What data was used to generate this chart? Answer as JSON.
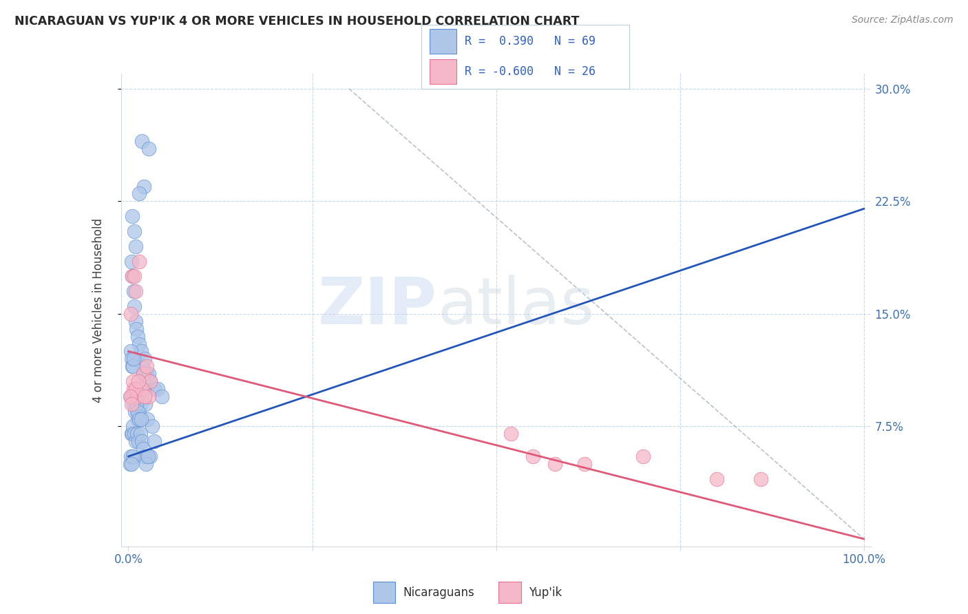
{
  "title": "NICARAGUAN VS YUP'IK 4 OR MORE VEHICLES IN HOUSEHOLD CORRELATION CHART",
  "source": "Source: ZipAtlas.com",
  "ylabel": "4 or more Vehicles in Household",
  "xlim": [
    0,
    100
  ],
  "ylim": [
    0,
    30
  ],
  "xticklabels": [
    "0.0%",
    "",
    "",
    "",
    "100.0%"
  ],
  "yticklabels_right": [
    "",
    "7.5%",
    "15.0%",
    "22.5%",
    "30.0%"
  ],
  "blue_color": "#aec6e8",
  "blue_edge_color": "#5b8fd4",
  "blue_line_color": "#2255bb",
  "pink_color": "#f5b8c8",
  "pink_edge_color": "#e87095",
  "pink_line_color": "#e05878",
  "grid_color": "#c8d8e8",
  "ref_line_color": "#b0bcc8",
  "blue_scatter_x": [
    1.8,
    2.1,
    1.5,
    2.8,
    0.5,
    0.8,
    1.0,
    0.4,
    0.5,
    0.7,
    0.8,
    1.0,
    1.1,
    1.3,
    1.5,
    1.7,
    1.9,
    2.0,
    2.2,
    2.5,
    2.8,
    3.0,
    3.5,
    4.0,
    4.5,
    0.3,
    0.4,
    0.5,
    0.6,
    0.7,
    0.8,
    1.0,
    1.2,
    1.3,
    1.5,
    1.6,
    1.8,
    2.0,
    2.3,
    2.6,
    3.2,
    0.4,
    0.5,
    0.6,
    0.8,
    1.0,
    1.2,
    1.4,
    1.6,
    1.8,
    2.0,
    2.5,
    3.0,
    0.3,
    0.5,
    0.7,
    0.9,
    1.1,
    1.3,
    1.5,
    1.7,
    2.1,
    2.4,
    2.7,
    3.5,
    0.2,
    0.3,
    0.6,
    0.4
  ],
  "blue_scatter_y": [
    26.5,
    23.5,
    23.0,
    26.0,
    21.5,
    20.5,
    19.5,
    18.5,
    17.5,
    16.5,
    15.5,
    14.5,
    14.0,
    13.5,
    13.0,
    12.5,
    11.5,
    11.0,
    12.0,
    11.0,
    11.0,
    10.5,
    10.0,
    10.0,
    9.5,
    12.5,
    12.0,
    11.5,
    11.5,
    12.0,
    9.5,
    9.0,
    8.5,
    8.0,
    8.5,
    9.0,
    9.5,
    10.0,
    9.0,
    8.0,
    7.5,
    7.0,
    7.0,
    7.5,
    7.0,
    6.5,
    7.0,
    6.5,
    7.0,
    6.5,
    6.0,
    5.5,
    5.5,
    9.5,
    9.5,
    9.0,
    8.5,
    9.0,
    8.5,
    8.0,
    8.0,
    5.5,
    5.0,
    5.5,
    6.5,
    5.0,
    5.5,
    5.5,
    5.0
  ],
  "pink_scatter_x": [
    0.3,
    0.5,
    0.8,
    1.0,
    1.5,
    2.0,
    2.5,
    3.0,
    0.4,
    0.7,
    1.2,
    1.8,
    2.8,
    0.6,
    1.0,
    1.4,
    2.2,
    52.0,
    55.0,
    58.0,
    62.0,
    70.0,
    80.0,
    86.0,
    0.2,
    0.4
  ],
  "pink_scatter_y": [
    15.0,
    17.5,
    17.5,
    16.5,
    18.5,
    11.0,
    11.5,
    10.5,
    9.5,
    10.0,
    9.5,
    10.0,
    9.5,
    10.5,
    10.0,
    10.5,
    9.5,
    7.0,
    5.5,
    5.0,
    5.0,
    5.5,
    4.0,
    4.0,
    9.5,
    9.0
  ],
  "blue_line_x": [
    0,
    100
  ],
  "blue_line_y": [
    5.5,
    22.0
  ],
  "pink_line_x": [
    0,
    100
  ],
  "pink_line_y": [
    12.5,
    0.0
  ],
  "ref_line_x": [
    30,
    100
  ],
  "ref_line_y": [
    30,
    0
  ]
}
